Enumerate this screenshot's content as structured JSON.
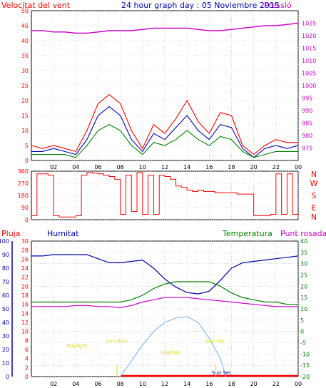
{
  "header": {
    "wind_label": "Velocitat del vent",
    "title": "24 hour graph day : 05 Noviembre 2015",
    "pressure_label": "Pressió"
  },
  "colors": {
    "red": "#ff0000",
    "blue": "#0000aa",
    "green": "#008000",
    "magenta": "#cc00cc",
    "yellow": "#dddd00",
    "sun": "#88bbee"
  },
  "x_ticks": [
    "02",
    "04",
    "06",
    "08",
    "10",
    "12",
    "14",
    "16",
    "18",
    "20",
    "22",
    "00"
  ],
  "chart_data": [
    {
      "type": "line",
      "title": "24 hour graph day : 05 Noviembre 2015",
      "ylabel": "Velocitat del vent",
      "y2label": "Pressió",
      "ylim": [
        0,
        50
      ],
      "y2lim": [
        970,
        1030
      ],
      "yticks": [
        "0",
        "5",
        "10",
        "15",
        "20",
        "25",
        "30",
        "35",
        "40",
        "45",
        "50"
      ],
      "y2ticks": [
        "975",
        "980",
        "985",
        "990",
        "995",
        "1000",
        "1005",
        "1010",
        "1015",
        "1020",
        "1025"
      ],
      "x": [
        0,
        1,
        2,
        3,
        4,
        5,
        6,
        7,
        8,
        9,
        10,
        11,
        12,
        13,
        14,
        15,
        16,
        17,
        18,
        19,
        20,
        21,
        22,
        23,
        24
      ],
      "series": [
        {
          "name": "gust",
          "color": "red",
          "values": [
            5,
            4,
            5,
            4,
            3,
            10,
            19,
            22,
            19,
            10,
            4,
            12,
            9,
            14,
            20,
            13,
            9,
            16,
            15,
            5,
            2,
            5,
            7,
            6,
            6
          ]
        },
        {
          "name": "avg",
          "color": "blue",
          "values": [
            3,
            3,
            4,
            3,
            2,
            7,
            15,
            18,
            15,
            7,
            3,
            9,
            7,
            11,
            15,
            10,
            7,
            12,
            11,
            4,
            1,
            4,
            5,
            4,
            5
          ]
        },
        {
          "name": "low",
          "color": "green",
          "values": [
            2,
            2,
            2,
            2,
            1,
            5,
            10,
            12,
            10,
            5,
            2,
            6,
            5,
            7,
            10,
            7,
            5,
            8,
            7,
            3,
            1,
            2,
            3,
            3,
            3
          ]
        },
        {
          "name": "Pressió",
          "color": "magenta",
          "axis": "y2",
          "values": [
            1022,
            1022,
            1021.5,
            1021.5,
            1021,
            1021,
            1021.5,
            1022,
            1022,
            1022,
            1022.5,
            1023,
            1023,
            1023,
            1023,
            1022.5,
            1022,
            1022,
            1022.5,
            1023,
            1023.5,
            1024,
            1024,
            1024.5,
            1025
          ]
        }
      ]
    },
    {
      "type": "line",
      "ylim": [
        0,
        360
      ],
      "yticks": [
        "0",
        "90",
        "180",
        "270",
        "360"
      ],
      "right_labels": [
        "N",
        "W",
        "S",
        "E",
        "N"
      ],
      "x": [
        0,
        0.5,
        1,
        1.5,
        2,
        2.5,
        3,
        3.5,
        4,
        4.5,
        5,
        5.5,
        6,
        6.5,
        7,
        7.5,
        8,
        8.5,
        9,
        9.5,
        10,
        10.5,
        11,
        11.5,
        12,
        12.5,
        13,
        13.5,
        14,
        14.5,
        15,
        15.5,
        16,
        16.5,
        17,
        17.5,
        18,
        18.5,
        19,
        19.5,
        20,
        20.5,
        21,
        21.5,
        22,
        22.5,
        23,
        23.5,
        24
      ],
      "series": [
        {
          "name": "wind direction",
          "color": "red",
          "values": [
            30,
            340,
            340,
            330,
            30,
            20,
            20,
            20,
            30,
            330,
            350,
            345,
            340,
            330,
            320,
            300,
            40,
            330,
            60,
            350,
            40,
            330,
            40,
            330,
            320,
            300,
            250,
            240,
            220,
            210,
            220,
            210,
            210,
            200,
            200,
            200,
            200,
            190,
            190,
            190,
            30,
            30,
            30,
            40,
            340,
            40,
            340,
            40,
            30
          ]
        }
      ]
    },
    {
      "type": "line",
      "labels": {
        "rain": "Pluja",
        "humidity": "Humitat",
        "temperature": "Temperatura",
        "dewpoint": "Punt rosada"
      },
      "outer_ticks": [
        "0",
        "10",
        "20",
        "30",
        "40",
        "50",
        "60",
        "70",
        "80",
        "90",
        "100"
      ],
      "rain_ticks": [
        "0",
        "2",
        "4",
        "6",
        "8",
        "10",
        "12",
        "14",
        "16",
        "18",
        "20",
        "22",
        "24",
        "26",
        "28",
        "30"
      ],
      "temp_ticks": [
        "-20",
        "-15",
        "-10",
        "-5",
        "0",
        "5",
        "10",
        "15",
        "20",
        "25",
        "30",
        "35",
        "40"
      ],
      "temp_lim": [
        -20,
        40
      ],
      "hum_lim": [
        0,
        100
      ],
      "annotations": [
        {
          "text": "Daylight",
          "x": 4.1,
          "temp": -7
        },
        {
          "text": "Sun Rise",
          "x": 7.7,
          "temp": -5
        },
        {
          "text": "Lowtide",
          "x": 12.5,
          "temp": -10
        },
        {
          "text": "Sun Set",
          "x": 16.5,
          "temp": -5
        },
        {
          "text": "Sun Set",
          "x": 17.1,
          "temp": -19
        }
      ],
      "x": [
        0,
        1,
        2,
        3,
        4,
        5,
        6,
        7,
        8,
        9,
        10,
        11,
        12,
        13,
        14,
        15,
        16,
        17,
        18,
        19,
        20,
        21,
        22,
        23,
        24
      ],
      "series": [
        {
          "name": "Humitat",
          "color": "blue",
          "values": [
            89,
            89,
            90,
            90,
            90,
            90,
            87,
            84,
            84,
            85,
            86,
            80,
            72,
            66,
            62,
            61,
            63,
            71,
            80,
            84,
            85,
            86,
            87,
            88,
            89
          ]
        },
        {
          "name": "Temperatura",
          "color": "green",
          "values": [
            13,
            13,
            13,
            13,
            13,
            13,
            13,
            13,
            13,
            14,
            16,
            19,
            21,
            22,
            22,
            22,
            22,
            20,
            17,
            15,
            14,
            13,
            13,
            12,
            12
          ]
        },
        {
          "name": "Punt rosada",
          "color": "magenta",
          "values": [
            11,
            11,
            11,
            11,
            11.5,
            11.5,
            11,
            11,
            10.5,
            11.5,
            13,
            14,
            15,
            15,
            15,
            14.5,
            14,
            13.5,
            13,
            12.5,
            12,
            11.5,
            11,
            11,
            11
          ]
        },
        {
          "name": "Pluja",
          "color": "red",
          "values": [
            0,
            0,
            0,
            0,
            0,
            0,
            0,
            0,
            0,
            0,
            0,
            0,
            0,
            0,
            0,
            0,
            0,
            0,
            0,
            0,
            0,
            0,
            0,
            0,
            0
          ]
        },
        {
          "name": "Sun",
          "color": "sun",
          "x": [
            8,
            9,
            10,
            11,
            12,
            13,
            14,
            15,
            16,
            17,
            17.5
          ],
          "values": [
            -20,
            -13,
            -6,
            0,
            4,
            6,
            6.5,
            4,
            -3,
            -12,
            -20
          ]
        }
      ]
    }
  ]
}
